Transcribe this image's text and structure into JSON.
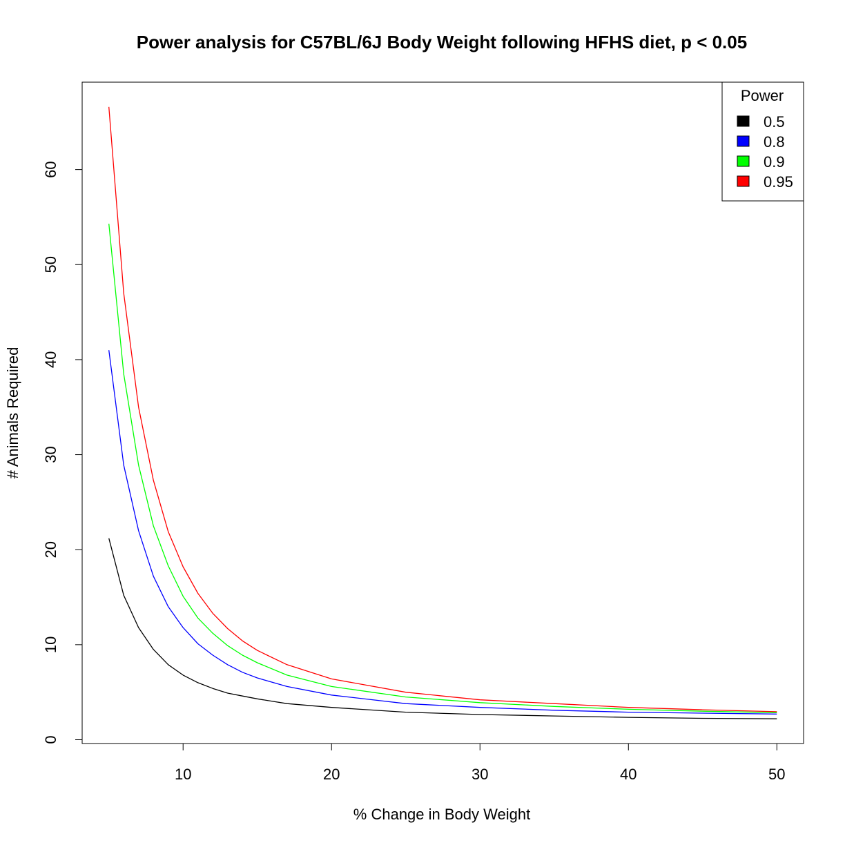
{
  "chart_data": {
    "type": "line",
    "title": "Power analysis for C57BL/6J Body Weight following HFHS diet, p < 0.05",
    "xlabel": "% Change in Body Weight",
    "ylabel": "# Animals Required",
    "xlim": [
      3.2,
      51.8
    ],
    "ylim": [
      -0.4,
      69.2
    ],
    "x_ticks": [
      10,
      20,
      30,
      40,
      50
    ],
    "y_ticks": [
      0,
      10,
      20,
      30,
      40,
      50,
      60
    ],
    "x_tick_labels": [
      "10",
      "20",
      "30",
      "40",
      "50"
    ],
    "y_tick_labels": [
      "0",
      "10",
      "20",
      "30",
      "40",
      "50",
      "60"
    ],
    "grid": false,
    "legend": {
      "title": "Power",
      "placement": "top-right",
      "entries": [
        "0.5",
        "0.8",
        "0.9",
        "0.95"
      ]
    },
    "x": [
      5,
      6,
      7,
      8,
      9,
      10,
      11,
      12,
      13,
      14,
      15,
      17,
      20,
      25,
      30,
      35,
      40,
      45,
      50
    ],
    "series": [
      {
        "name": "0.5",
        "color": "#000000",
        "values": [
          21.2,
          15.2,
          11.8,
          9.5,
          7.9,
          6.8,
          6.0,
          5.4,
          4.9,
          4.6,
          4.3,
          3.8,
          3.4,
          2.9,
          2.65,
          2.5,
          2.35,
          2.25,
          2.2
        ]
      },
      {
        "name": "0.8",
        "color": "#0000ff",
        "values": [
          41.0,
          28.9,
          22.0,
          17.2,
          14.0,
          11.8,
          10.1,
          8.9,
          7.9,
          7.1,
          6.5,
          5.6,
          4.7,
          3.8,
          3.4,
          3.1,
          2.9,
          2.8,
          2.7
        ]
      },
      {
        "name": "0.9",
        "color": "#00ff00",
        "values": [
          54.3,
          38.5,
          28.9,
          22.5,
          18.3,
          15.1,
          12.8,
          11.2,
          9.9,
          8.9,
          8.1,
          6.8,
          5.6,
          4.5,
          3.9,
          3.5,
          3.2,
          3.0,
          2.85
        ]
      },
      {
        "name": "0.95",
        "color": "#ff0000",
        "values": [
          66.6,
          47.0,
          35.0,
          27.3,
          21.9,
          18.2,
          15.4,
          13.3,
          11.7,
          10.4,
          9.4,
          7.9,
          6.4,
          5.0,
          4.2,
          3.8,
          3.4,
          3.15,
          2.95
        ]
      }
    ]
  }
}
